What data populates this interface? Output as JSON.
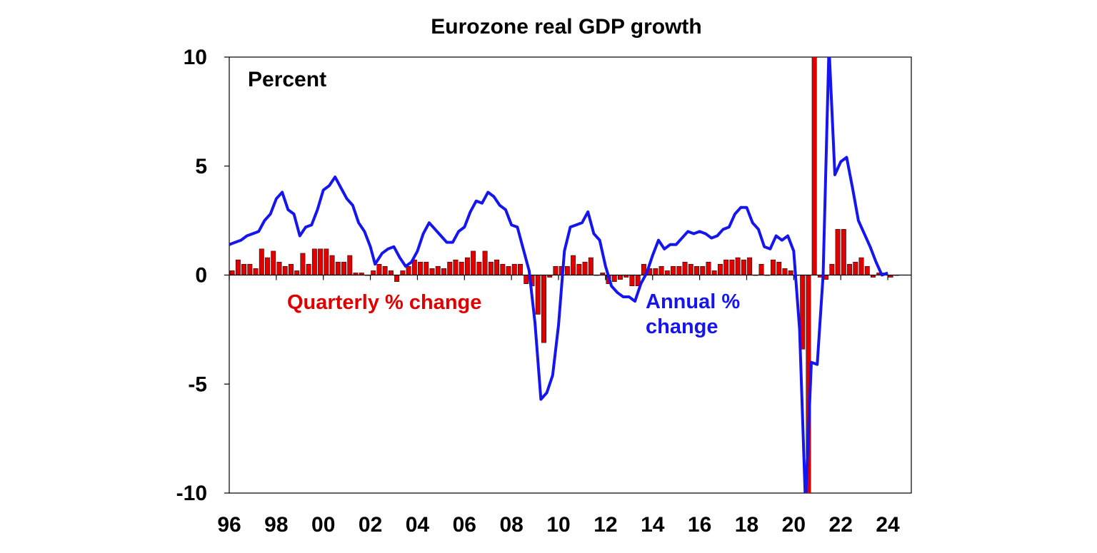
{
  "chart_data": {
    "type": "bar+line",
    "title": "Eurozone real GDP growth",
    "unit_label": "Percent",
    "x_start": 1996.0,
    "x_end": 2025.0,
    "ylim": [
      -10,
      10
    ],
    "yticks": [
      10,
      5,
      0,
      -5,
      -10
    ],
    "yticks_labels": [
      "10",
      "5",
      "0",
      "-5",
      "-10"
    ],
    "xticks": [
      1996,
      1998,
      2000,
      2002,
      2004,
      2006,
      2008,
      2010,
      2012,
      2014,
      2016,
      2018,
      2020,
      2022,
      2024
    ],
    "xticks_labels": [
      "96",
      "98",
      "00",
      "02",
      "04",
      "06",
      "08",
      "10",
      "12",
      "14",
      "16",
      "18",
      "20",
      "22",
      "24"
    ],
    "colors": {
      "quarterly": "#e00000",
      "annual": "#1515f0",
      "axis": "#000000"
    },
    "series": [
      {
        "name": "Quarterly % change",
        "kind": "bar",
        "start": 1996.0,
        "step": 0.25,
        "values": [
          0.2,
          0.7,
          0.5,
          0.5,
          0.3,
          1.2,
          0.8,
          1.1,
          0.6,
          0.4,
          0.5,
          0.2,
          1.0,
          0.5,
          1.2,
          1.2,
          1.2,
          0.9,
          0.6,
          0.6,
          0.9,
          0.1,
          0.1,
          0.0,
          0.2,
          0.5,
          0.4,
          0.2,
          -0.3,
          0.2,
          0.4,
          0.7,
          0.6,
          0.6,
          0.3,
          0.4,
          0.3,
          0.6,
          0.7,
          0.6,
          0.8,
          1.1,
          0.6,
          1.1,
          0.6,
          0.7,
          0.5,
          0.4,
          0.5,
          0.5,
          -0.4,
          -0.5,
          -1.8,
          -3.1,
          -0.1,
          0.4,
          0.4,
          0.4,
          0.9,
          0.5,
          0.6,
          0.8,
          0.0,
          0.1,
          -0.4,
          -0.3,
          -0.2,
          -0.1,
          -0.5,
          -0.5,
          0.5,
          0.3,
          0.3,
          0.4,
          0.2,
          0.4,
          0.4,
          0.6,
          0.5,
          0.4,
          0.4,
          0.6,
          0.2,
          0.5,
          0.7,
          0.7,
          0.8,
          0.7,
          0.8,
          0.0,
          0.5,
          0.0,
          0.7,
          0.6,
          0.3,
          0.2,
          0.0,
          -3.4,
          -11.6,
          12.5,
          -0.1,
          -0.2,
          0.5,
          2.1,
          2.1,
          0.5,
          0.6,
          0.8,
          0.4,
          -0.1,
          0.1,
          0.1,
          -0.1,
          0.0
        ]
      },
      {
        "name": "Annual % change",
        "kind": "line",
        "points": [
          [
            1996.0,
            1.4
          ],
          [
            1996.25,
            1.5
          ],
          [
            1996.5,
            1.6
          ],
          [
            1996.75,
            1.8
          ],
          [
            1997.0,
            1.9
          ],
          [
            1997.25,
            2.0
          ],
          [
            1997.5,
            2.5
          ],
          [
            1997.75,
            2.8
          ],
          [
            1998.0,
            3.5
          ],
          [
            1998.25,
            3.8
          ],
          [
            1998.5,
            3.0
          ],
          [
            1998.75,
            2.8
          ],
          [
            1999.0,
            1.8
          ],
          [
            1999.25,
            2.2
          ],
          [
            1999.5,
            2.3
          ],
          [
            1999.75,
            3.0
          ],
          [
            2000.0,
            3.9
          ],
          [
            2000.25,
            4.1
          ],
          [
            2000.5,
            4.5
          ],
          [
            2000.75,
            4.0
          ],
          [
            2001.0,
            3.5
          ],
          [
            2001.25,
            3.2
          ],
          [
            2001.5,
            2.4
          ],
          [
            2001.75,
            2.0
          ],
          [
            2002.0,
            1.3
          ],
          [
            2002.2,
            0.5
          ],
          [
            2002.5,
            1.0
          ],
          [
            2002.75,
            1.2
          ],
          [
            2003.0,
            1.3
          ],
          [
            2003.25,
            0.8
          ],
          [
            2003.5,
            0.4
          ],
          [
            2003.75,
            0.6
          ],
          [
            2004.0,
            1.1
          ],
          [
            2004.25,
            1.9
          ],
          [
            2004.5,
            2.4
          ],
          [
            2004.75,
            2.1
          ],
          [
            2005.0,
            1.8
          ],
          [
            2005.25,
            1.5
          ],
          [
            2005.5,
            1.5
          ],
          [
            2005.75,
            2.0
          ],
          [
            2006.0,
            2.2
          ],
          [
            2006.25,
            2.9
          ],
          [
            2006.5,
            3.4
          ],
          [
            2006.75,
            3.3
          ],
          [
            2007.0,
            3.8
          ],
          [
            2007.25,
            3.6
          ],
          [
            2007.5,
            3.2
          ],
          [
            2007.75,
            3.0
          ],
          [
            2008.0,
            2.3
          ],
          [
            2008.25,
            2.2
          ],
          [
            2008.5,
            1.2
          ],
          [
            2008.75,
            0.2
          ],
          [
            2009.0,
            -2.2
          ],
          [
            2009.25,
            -5.7
          ],
          [
            2009.5,
            -5.4
          ],
          [
            2009.75,
            -4.6
          ],
          [
            2010.0,
            -2.3
          ],
          [
            2010.25,
            1.1
          ],
          [
            2010.5,
            2.2
          ],
          [
            2010.75,
            2.3
          ],
          [
            2011.0,
            2.4
          ],
          [
            2011.25,
            2.9
          ],
          [
            2011.5,
            1.9
          ],
          [
            2011.75,
            1.6
          ],
          [
            2012.0,
            0.4
          ],
          [
            2012.25,
            -0.5
          ],
          [
            2012.5,
            -0.8
          ],
          [
            2012.75,
            -1.0
          ],
          [
            2013.0,
            -1.0
          ],
          [
            2013.25,
            -1.2
          ],
          [
            2013.5,
            -0.4
          ],
          [
            2013.75,
            0.1
          ],
          [
            2014.0,
            0.9
          ],
          [
            2014.25,
            1.6
          ],
          [
            2014.5,
            1.2
          ],
          [
            2014.75,
            1.4
          ],
          [
            2015.0,
            1.4
          ],
          [
            2015.25,
            1.7
          ],
          [
            2015.5,
            2.0
          ],
          [
            2015.75,
            1.9
          ],
          [
            2016.0,
            2.0
          ],
          [
            2016.25,
            1.9
          ],
          [
            2016.5,
            1.7
          ],
          [
            2016.75,
            1.8
          ],
          [
            2017.0,
            2.1
          ],
          [
            2017.25,
            2.2
          ],
          [
            2017.5,
            2.8
          ],
          [
            2017.75,
            3.1
          ],
          [
            2018.0,
            3.1
          ],
          [
            2018.25,
            2.4
          ],
          [
            2018.5,
            2.1
          ],
          [
            2018.75,
            1.3
          ],
          [
            2019.0,
            1.2
          ],
          [
            2019.25,
            1.8
          ],
          [
            2019.5,
            1.6
          ],
          [
            2019.75,
            1.8
          ],
          [
            2020.0,
            1.1
          ],
          [
            2020.25,
            -2.5
          ],
          [
            2020.5,
            -10.5
          ],
          [
            2020.75,
            -4.0
          ],
          [
            2021.0,
            -4.1
          ],
          [
            2021.25,
            0.0
          ],
          [
            2021.5,
            10.5
          ],
          [
            2021.75,
            4.6
          ],
          [
            2022.0,
            5.2
          ],
          [
            2022.25,
            5.4
          ],
          [
            2022.5,
            4.0
          ],
          [
            2022.75,
            2.5
          ],
          [
            2023.0,
            1.9
          ],
          [
            2023.25,
            1.3
          ],
          [
            2023.5,
            0.6
          ],
          [
            2023.75,
            0.0
          ],
          [
            2024.0,
            0.1
          ]
        ]
      }
    ],
    "annotations": [
      {
        "id": "quarterly",
        "lines": [
          "Quarterly % change"
        ]
      },
      {
        "id": "annual",
        "lines": [
          "Annual %",
          "change"
        ]
      }
    ]
  }
}
